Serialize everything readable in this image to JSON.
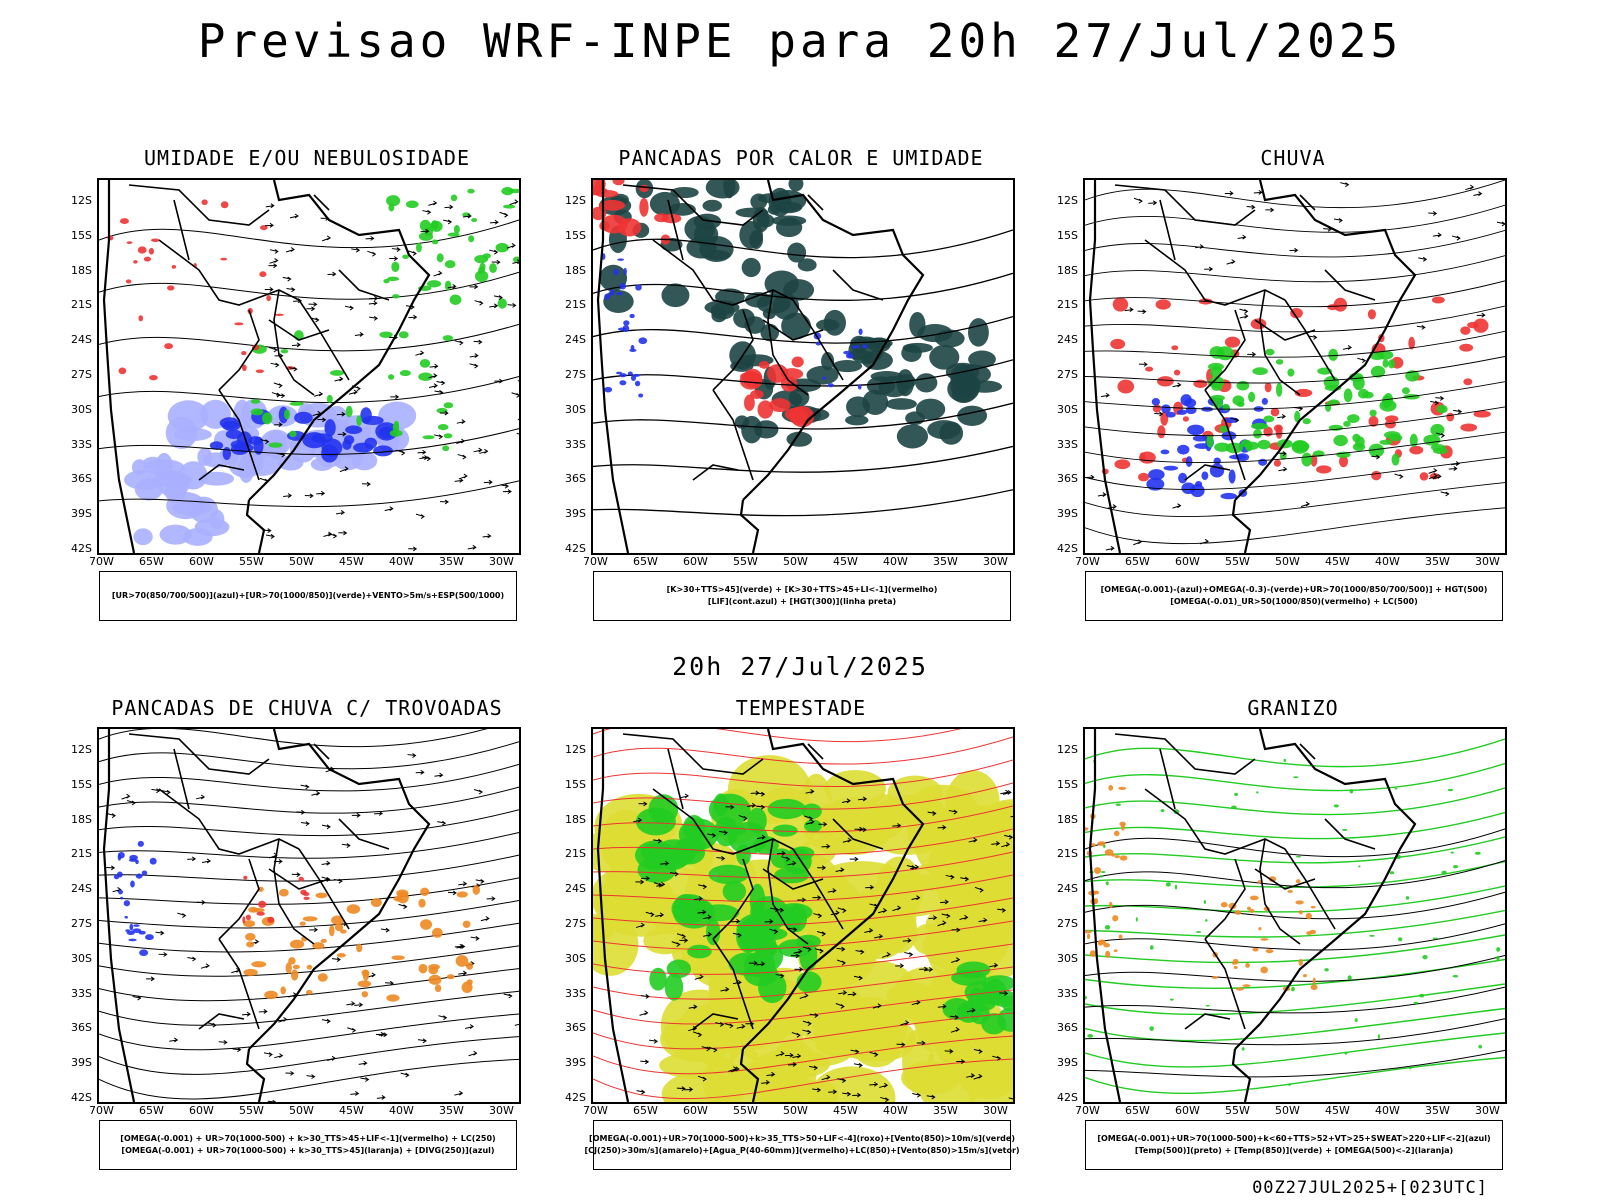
{
  "header": {
    "title": "Previsao WRF-INPE  para 20h 27/Jul/2025"
  },
  "middle": {
    "title": "20h 27/Jul/2025"
  },
  "footer": {
    "stamp": "00Z27JUL2025+[023UTC]"
  },
  "axes": {
    "lat_labels": [
      "12S",
      "15S",
      "18S",
      "21S",
      "24S",
      "27S",
      "30S",
      "33S",
      "36S",
      "39S",
      "42S"
    ],
    "lon_labels": [
      "70W",
      "65W",
      "60W",
      "55W",
      "50W",
      "45W",
      "40W",
      "35W",
      "30W"
    ]
  },
  "colors": {
    "blue": "#2233ee",
    "lightblue": "#aab0ff",
    "green": "#22cc22",
    "red": "#ee3333",
    "teal": "#1d4444",
    "orange": "#ee8822",
    "yellow": "#dddd33"
  },
  "panels": [
    {
      "title": "UMIDADE E/OU NEBULOSIDADE",
      "caption": [
        "[UR>70(850/700/500)](azul)+[UR>70(1000/850)](verde)+VENTO>5m/s+ESP(500/1000)"
      ]
    },
    {
      "title": "PANCADAS POR CALOR E UMIDADE",
      "caption": [
        "[K>30+TTS>45](verde) + [K>30+TTS>45+LI<-1](vermelho)",
        "[LIF](cont.azul) + [HGT(300)](linha preta)"
      ]
    },
    {
      "title": "CHUVA",
      "caption": [
        "[OMEGA(-0.001)-(azul)+OMEGA(-0.3)-(verde)+UR>70(1000/850/700/500)] + HGT(500)",
        "[OMEGA(-0.01)_UR>50(1000/850)(vermelho) + LC(500)"
      ]
    },
    {
      "title": "PANCADAS DE CHUVA C/ TROVOADAS",
      "caption": [
        "[OMEGA(-0.001) + UR>70(1000-500) + k>30_TTS>45+LIF<-1](vermelho) + LC(250)",
        "[OMEGA(-0.001) + UR>70(1000-500) + k>30_TTS>45](laranja) + [DIVG(250)](azul)"
      ]
    },
    {
      "title": "TEMPESTADE",
      "caption": [
        "[OMEGA(-0.001)+UR>70(1000-500)+k>35_TTS>50+LIF<-4](roxo)+[Vento(850)>10m/s](verde)",
        "[CJ(250)>30m/s](amarelo)+[Agua_P(40-60mm)](vermelho)+LC(850)+[Vento(850)>15m/s](vetor)"
      ]
    },
    {
      "title": "GRANIZO",
      "caption": [
        "[OMEGA(-0.001)+UR>70(1000-500)+k<60+TTS>52+VT>25+SWEAT>220+LIF<-2](azul)",
        "[Temp(500)](preto) + [Temp(850)](verde) + [OMEGA(500)<-2](laranja)"
      ]
    }
  ]
}
